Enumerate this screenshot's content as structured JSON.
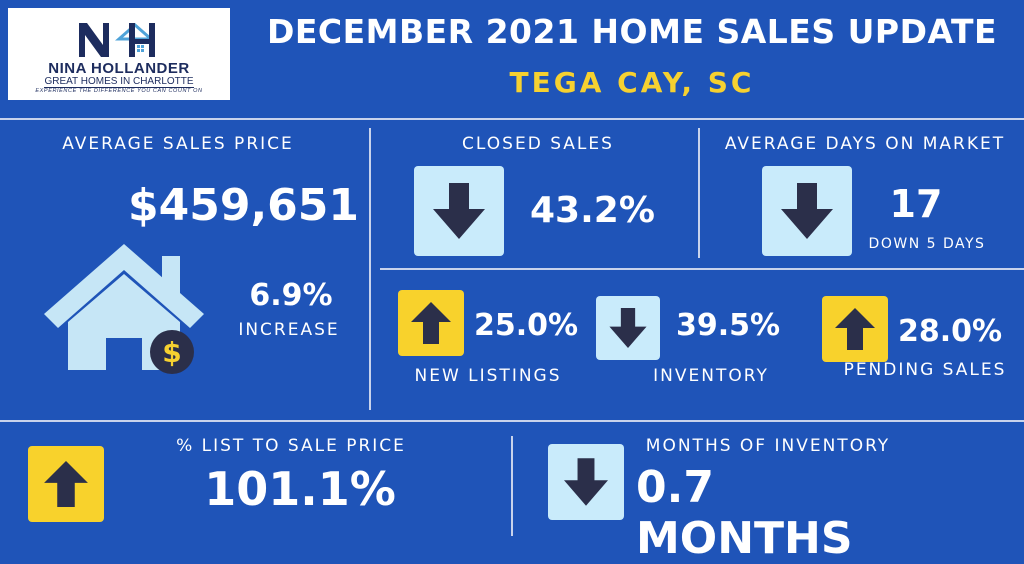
{
  "logo": {
    "name": "NINA HOLLANDER",
    "tagline": "GREAT HOMES IN CHARLOTTE",
    "slogan": "EXPERIENCE THE DIFFERENCE YOU CAN COUNT ON"
  },
  "header": {
    "title": "DECEMBER 2021 HOME SALES UPDATE",
    "location": "TEGA CAY, SC"
  },
  "avg_price": {
    "label": "AVERAGE SALES PRICE",
    "value": "$459,651",
    "change": "6.9%",
    "change_label": "INCREASE",
    "icon": "house-dollar-icon"
  },
  "closed_sales": {
    "label": "CLOSED SALES",
    "value": "43.2%",
    "direction": "down"
  },
  "days_on_market": {
    "label": "AVERAGE DAYS ON MARKET",
    "value": "17",
    "note": "DOWN 5 DAYS",
    "direction": "down"
  },
  "new_listings": {
    "label": "NEW LISTINGS",
    "value": "25.0%",
    "direction": "up"
  },
  "inventory": {
    "label": "INVENTORY",
    "value": "39.5%",
    "direction": "down"
  },
  "pending_sales": {
    "label": "PENDING SALES",
    "value": "28.0%",
    "direction": "up"
  },
  "list_to_sale": {
    "label": "% LIST TO SALE PRICE",
    "value": "101.1%",
    "direction": "up"
  },
  "months_inventory": {
    "label": "MONTHS OF INVENTORY",
    "value": "0.7 MONTHS",
    "direction": "down"
  },
  "colors": {
    "background": "#1f54b8",
    "accent_yellow": "#f6d130",
    "up_box": "#f8d22c",
    "down_box": "#c9ebfb",
    "arrow": "#2b2f4a",
    "house": "#c6e6f6"
  }
}
